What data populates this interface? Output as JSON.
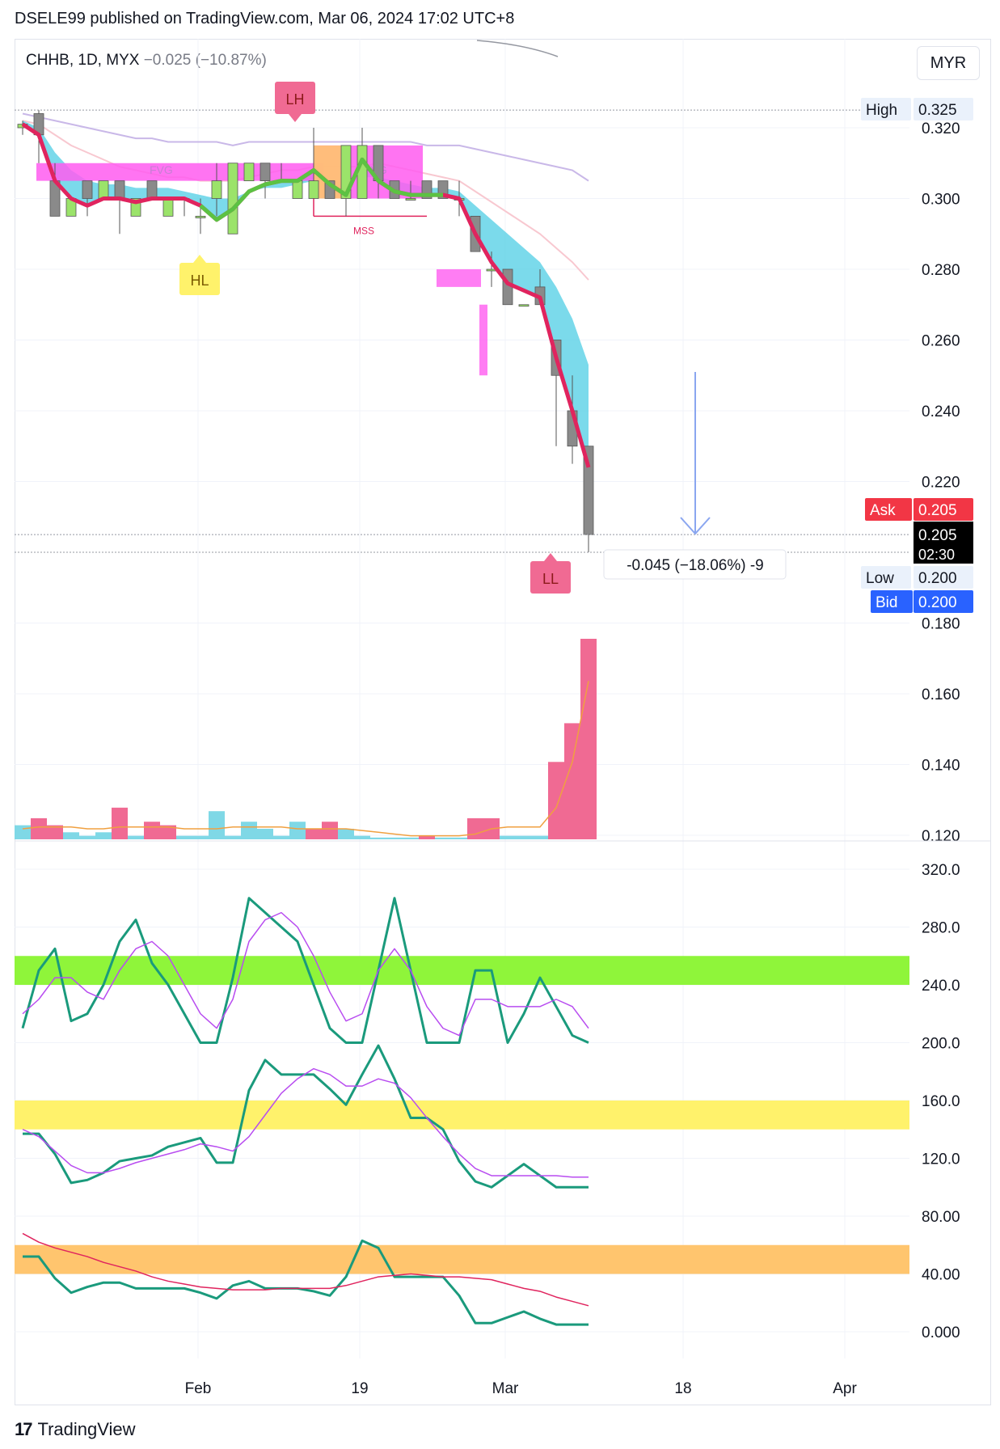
{
  "header": {
    "publisher": "DSELE99 published on TradingView.com, Mar 06, 2024 17:02 UTC+8"
  },
  "symbol": {
    "name": "CHHB, 1D, MYX",
    "change": "−0.025 (−10.87%)"
  },
  "currency": "MYR",
  "footer": {
    "brand": "TradingView"
  },
  "price_badges": {
    "high_label": "High",
    "high_value": "0.325",
    "ask_label": "Ask",
    "ask_value": "0.205",
    "last_value": "0.205",
    "countdown": "02:30",
    "low_label": "Low",
    "low_value": "0.200",
    "bid_label": "Bid",
    "bid_value": "0.200"
  },
  "measure_label": "-0.045 (−18.06%) -9",
  "annotations": {
    "lh": "LH",
    "hl": "HL",
    "ll": "LL",
    "fvg1": "FVG",
    "fvg2": "FVG",
    "mss": "MSS"
  },
  "colors": {
    "up": "#9be36a",
    "down": "#8a8a8a",
    "ema_band": "#5ad1e6",
    "ema_line": "#e0245e",
    "volume_up": "#7fd8e6",
    "volume_down": "#f06a93",
    "fvg": "#ff5cf0",
    "green_zone": "#8ff53a",
    "yellow_zone": "#fff26b",
    "orange_zone": "#ffc56e",
    "teal_line": "#1a9a7c",
    "purple_line": "#b84cf0",
    "red_line": "#e0245e"
  },
  "chart_data": [
    {
      "type": "candlestick",
      "title": "CHHB, 1D, MYX",
      "x_ticks": [
        "Feb",
        "19",
        "Mar",
        "18",
        "Apr"
      ],
      "y_ticks": [
        "0.320",
        "0.300",
        "0.280",
        "0.260",
        "0.240",
        "0.220",
        "0.180",
        "0.160",
        "0.140",
        "0.120"
      ],
      "ylim": [
        0.115,
        0.33
      ],
      "candles": [
        {
          "o": 0.32,
          "h": 0.322,
          "l": 0.318,
          "c": 0.321
        },
        {
          "o": 0.324,
          "h": 0.325,
          "l": 0.31,
          "c": 0.318
        },
        {
          "o": 0.305,
          "h": 0.31,
          "l": 0.295,
          "c": 0.295
        },
        {
          "o": 0.295,
          "h": 0.3,
          "l": 0.295,
          "c": 0.3
        },
        {
          "o": 0.305,
          "h": 0.305,
          "l": 0.295,
          "c": 0.3
        },
        {
          "o": 0.3,
          "h": 0.305,
          "l": 0.3,
          "c": 0.305
        },
        {
          "o": 0.305,
          "h": 0.305,
          "l": 0.29,
          "c": 0.3
        },
        {
          "o": 0.295,
          "h": 0.3,
          "l": 0.295,
          "c": 0.3
        },
        {
          "o": 0.305,
          "h": 0.305,
          "l": 0.3,
          "c": 0.3
        },
        {
          "o": 0.295,
          "h": 0.3,
          "l": 0.295,
          "c": 0.3
        },
        {
          "o": 0.3,
          "h": 0.3,
          "l": 0.295,
          "c": 0.3
        },
        {
          "o": 0.295,
          "h": 0.3,
          "l": 0.29,
          "c": 0.295
        },
        {
          "o": 0.3,
          "h": 0.31,
          "l": 0.295,
          "c": 0.305
        },
        {
          "o": 0.29,
          "h": 0.31,
          "l": 0.29,
          "c": 0.31
        },
        {
          "o": 0.305,
          "h": 0.31,
          "l": 0.305,
          "c": 0.31
        },
        {
          "o": 0.31,
          "h": 0.31,
          "l": 0.3,
          "c": 0.305
        },
        {
          "o": 0.305,
          "h": 0.31,
          "l": 0.305,
          "c": 0.305
        },
        {
          "o": 0.3,
          "h": 0.305,
          "l": 0.3,
          "c": 0.305
        },
        {
          "o": 0.3,
          "h": 0.32,
          "l": 0.3,
          "c": 0.305
        },
        {
          "o": 0.305,
          "h": 0.305,
          "l": 0.3,
          "c": 0.3
        },
        {
          "o": 0.3,
          "h": 0.315,
          "l": 0.295,
          "c": 0.315
        },
        {
          "o": 0.3,
          "h": 0.32,
          "l": 0.3,
          "c": 0.315
        },
        {
          "o": 0.315,
          "h": 0.315,
          "l": 0.3,
          "c": 0.305
        },
        {
          "o": 0.305,
          "h": 0.305,
          "l": 0.3,
          "c": 0.3
        },
        {
          "o": 0.3,
          "h": 0.305,
          "l": 0.3,
          "c": 0.3
        },
        {
          "o": 0.305,
          "h": 0.305,
          "l": 0.3,
          "c": 0.3
        },
        {
          "o": 0.305,
          "h": 0.305,
          "l": 0.3,
          "c": 0.3
        },
        {
          "o": 0.3,
          "h": 0.305,
          "l": 0.295,
          "c": 0.3
        },
        {
          "o": 0.295,
          "h": 0.295,
          "l": 0.285,
          "c": 0.285
        },
        {
          "o": 0.28,
          "h": 0.285,
          "l": 0.275,
          "c": 0.28
        },
        {
          "o": 0.28,
          "h": 0.28,
          "l": 0.27,
          "c": 0.27
        },
        {
          "o": 0.27,
          "h": 0.27,
          "l": 0.27,
          "c": 0.27
        },
        {
          "o": 0.275,
          "h": 0.28,
          "l": 0.27,
          "c": 0.27
        },
        {
          "o": 0.26,
          "h": 0.26,
          "l": 0.23,
          "c": 0.25
        },
        {
          "o": 0.24,
          "h": 0.25,
          "l": 0.225,
          "c": 0.23
        },
        {
          "o": 0.23,
          "h": 0.23,
          "l": 0.2,
          "c": 0.205
        }
      ],
      "volume": [
        4,
        6,
        4,
        2,
        1,
        2,
        9,
        1,
        5,
        4,
        1,
        1,
        8,
        1,
        5,
        3,
        1,
        5,
        3,
        5,
        3,
        1,
        0.5,
        0.5,
        0.5,
        1,
        0.5,
        0.5,
        6,
        6,
        1,
        1,
        1,
        22,
        33,
        57
      ],
      "volume_up": [
        true,
        false,
        false,
        true,
        true,
        true,
        false,
        true,
        false,
        false,
        true,
        true,
        true,
        true,
        true,
        true,
        true,
        true,
        false,
        false,
        true,
        true,
        true,
        true,
        true,
        false,
        true,
        true,
        false,
        false,
        true,
        true,
        true,
        false,
        false,
        false
      ]
    },
    {
      "type": "line",
      "title": "oscillators",
      "y_ticks": [
        "320.0",
        "280.0",
        "240.0",
        "200.0",
        "160.0",
        "120.0",
        "80.00",
        "40.00",
        "0.000"
      ],
      "ylim": [
        -20,
        340
      ],
      "series": [
        {
          "values": [
            210,
            250,
            265,
            215,
            220,
            240,
            270,
            285,
            255,
            240,
            220,
            200,
            200,
            245,
            300,
            290,
            280,
            270,
            240,
            210,
            200,
            200,
            250,
            300,
            250,
            200,
            200,
            200,
            250,
            250,
            200,
            220,
            245,
            225,
            205,
            200
          ]
        },
        {
          "values": [
            220,
            230,
            245,
            245,
            235,
            230,
            250,
            265,
            270,
            260,
            240,
            220,
            210,
            230,
            270,
            285,
            290,
            280,
            260,
            235,
            215,
            220,
            250,
            265,
            250,
            225,
            210,
            205,
            230,
            230,
            225,
            225,
            225,
            230,
            225,
            210
          ]
        },
        {
          "values": [
            137,
            137,
            123,
            103,
            105,
            110,
            118,
            120,
            122,
            128,
            131,
            134,
            117,
            117,
            167,
            188,
            178,
            178,
            178,
            168,
            157,
            178,
            198,
            175,
            148,
            148,
            140,
            118,
            104,
            100,
            108,
            116,
            108,
            100,
            100,
            100
          ]
        },
        {
          "values": [
            140,
            135,
            125,
            115,
            110,
            110,
            113,
            117,
            120,
            123,
            126,
            130,
            128,
            125,
            135,
            150,
            165,
            175,
            182,
            178,
            170,
            170,
            175,
            172,
            162,
            148,
            135,
            123,
            113,
            108,
            108,
            108,
            108,
            108,
            107,
            107
          ]
        },
        {
          "values": [
            52,
            52,
            37,
            27,
            31,
            34,
            34,
            30,
            30,
            30,
            30,
            27,
            23,
            32,
            35,
            30,
            30,
            30,
            28,
            25,
            38,
            63,
            58,
            38,
            38,
            38,
            38,
            25,
            6,
            6,
            10,
            14,
            9,
            5,
            5,
            5
          ]
        },
        {
          "values": [
            68,
            62,
            58,
            55,
            52,
            48,
            45,
            42,
            38,
            35,
            33,
            31,
            30,
            29,
            29,
            29,
            30,
            30,
            30,
            30,
            32,
            35,
            38,
            39,
            40,
            39,
            38,
            38,
            37,
            36,
            33,
            30,
            28,
            24,
            21,
            18
          ]
        }
      ],
      "zones": [
        [
          240,
          260
        ],
        [
          140,
          160
        ],
        [
          40,
          60
        ]
      ]
    }
  ]
}
